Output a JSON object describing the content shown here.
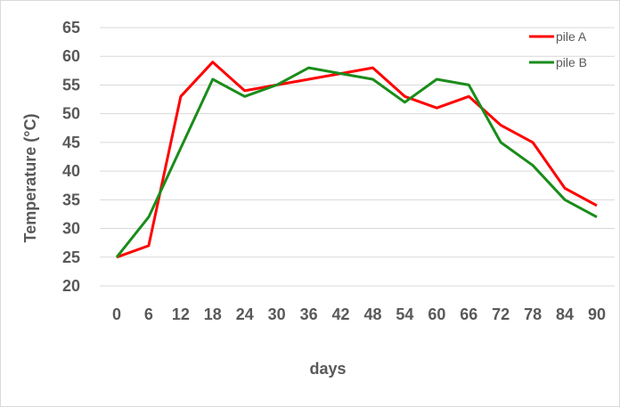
{
  "chart_data": {
    "type": "line",
    "title": "",
    "xlabel": "days",
    "ylabel": "Temperature (°C)",
    "x": [
      0,
      6,
      12,
      18,
      24,
      30,
      36,
      42,
      48,
      54,
      60,
      66,
      72,
      78,
      84,
      90
    ],
    "x_tick_labels": [
      "0",
      "6",
      "12",
      "18",
      "24",
      "30",
      "36",
      "42",
      "48",
      "54",
      "60",
      "66",
      "72",
      "78",
      "84",
      "90"
    ],
    "ylim": [
      20,
      65
    ],
    "y_ticks": [
      20,
      25,
      30,
      35,
      40,
      45,
      50,
      55,
      60,
      65
    ],
    "grid": true,
    "legend_position": "top-right",
    "series": [
      {
        "name": "pile A",
        "color": "#ff0000",
        "values": [
          25,
          27,
          53,
          59,
          54,
          55,
          56,
          57,
          58,
          53,
          51,
          53,
          48,
          45,
          37,
          34
        ]
      },
      {
        "name": "pile B",
        "color": "#1a8c1a",
        "values": [
          25,
          32,
          44,
          56,
          53,
          55,
          58,
          57,
          56,
          52,
          56,
          55,
          45,
          41,
          35,
          32
        ]
      }
    ]
  }
}
